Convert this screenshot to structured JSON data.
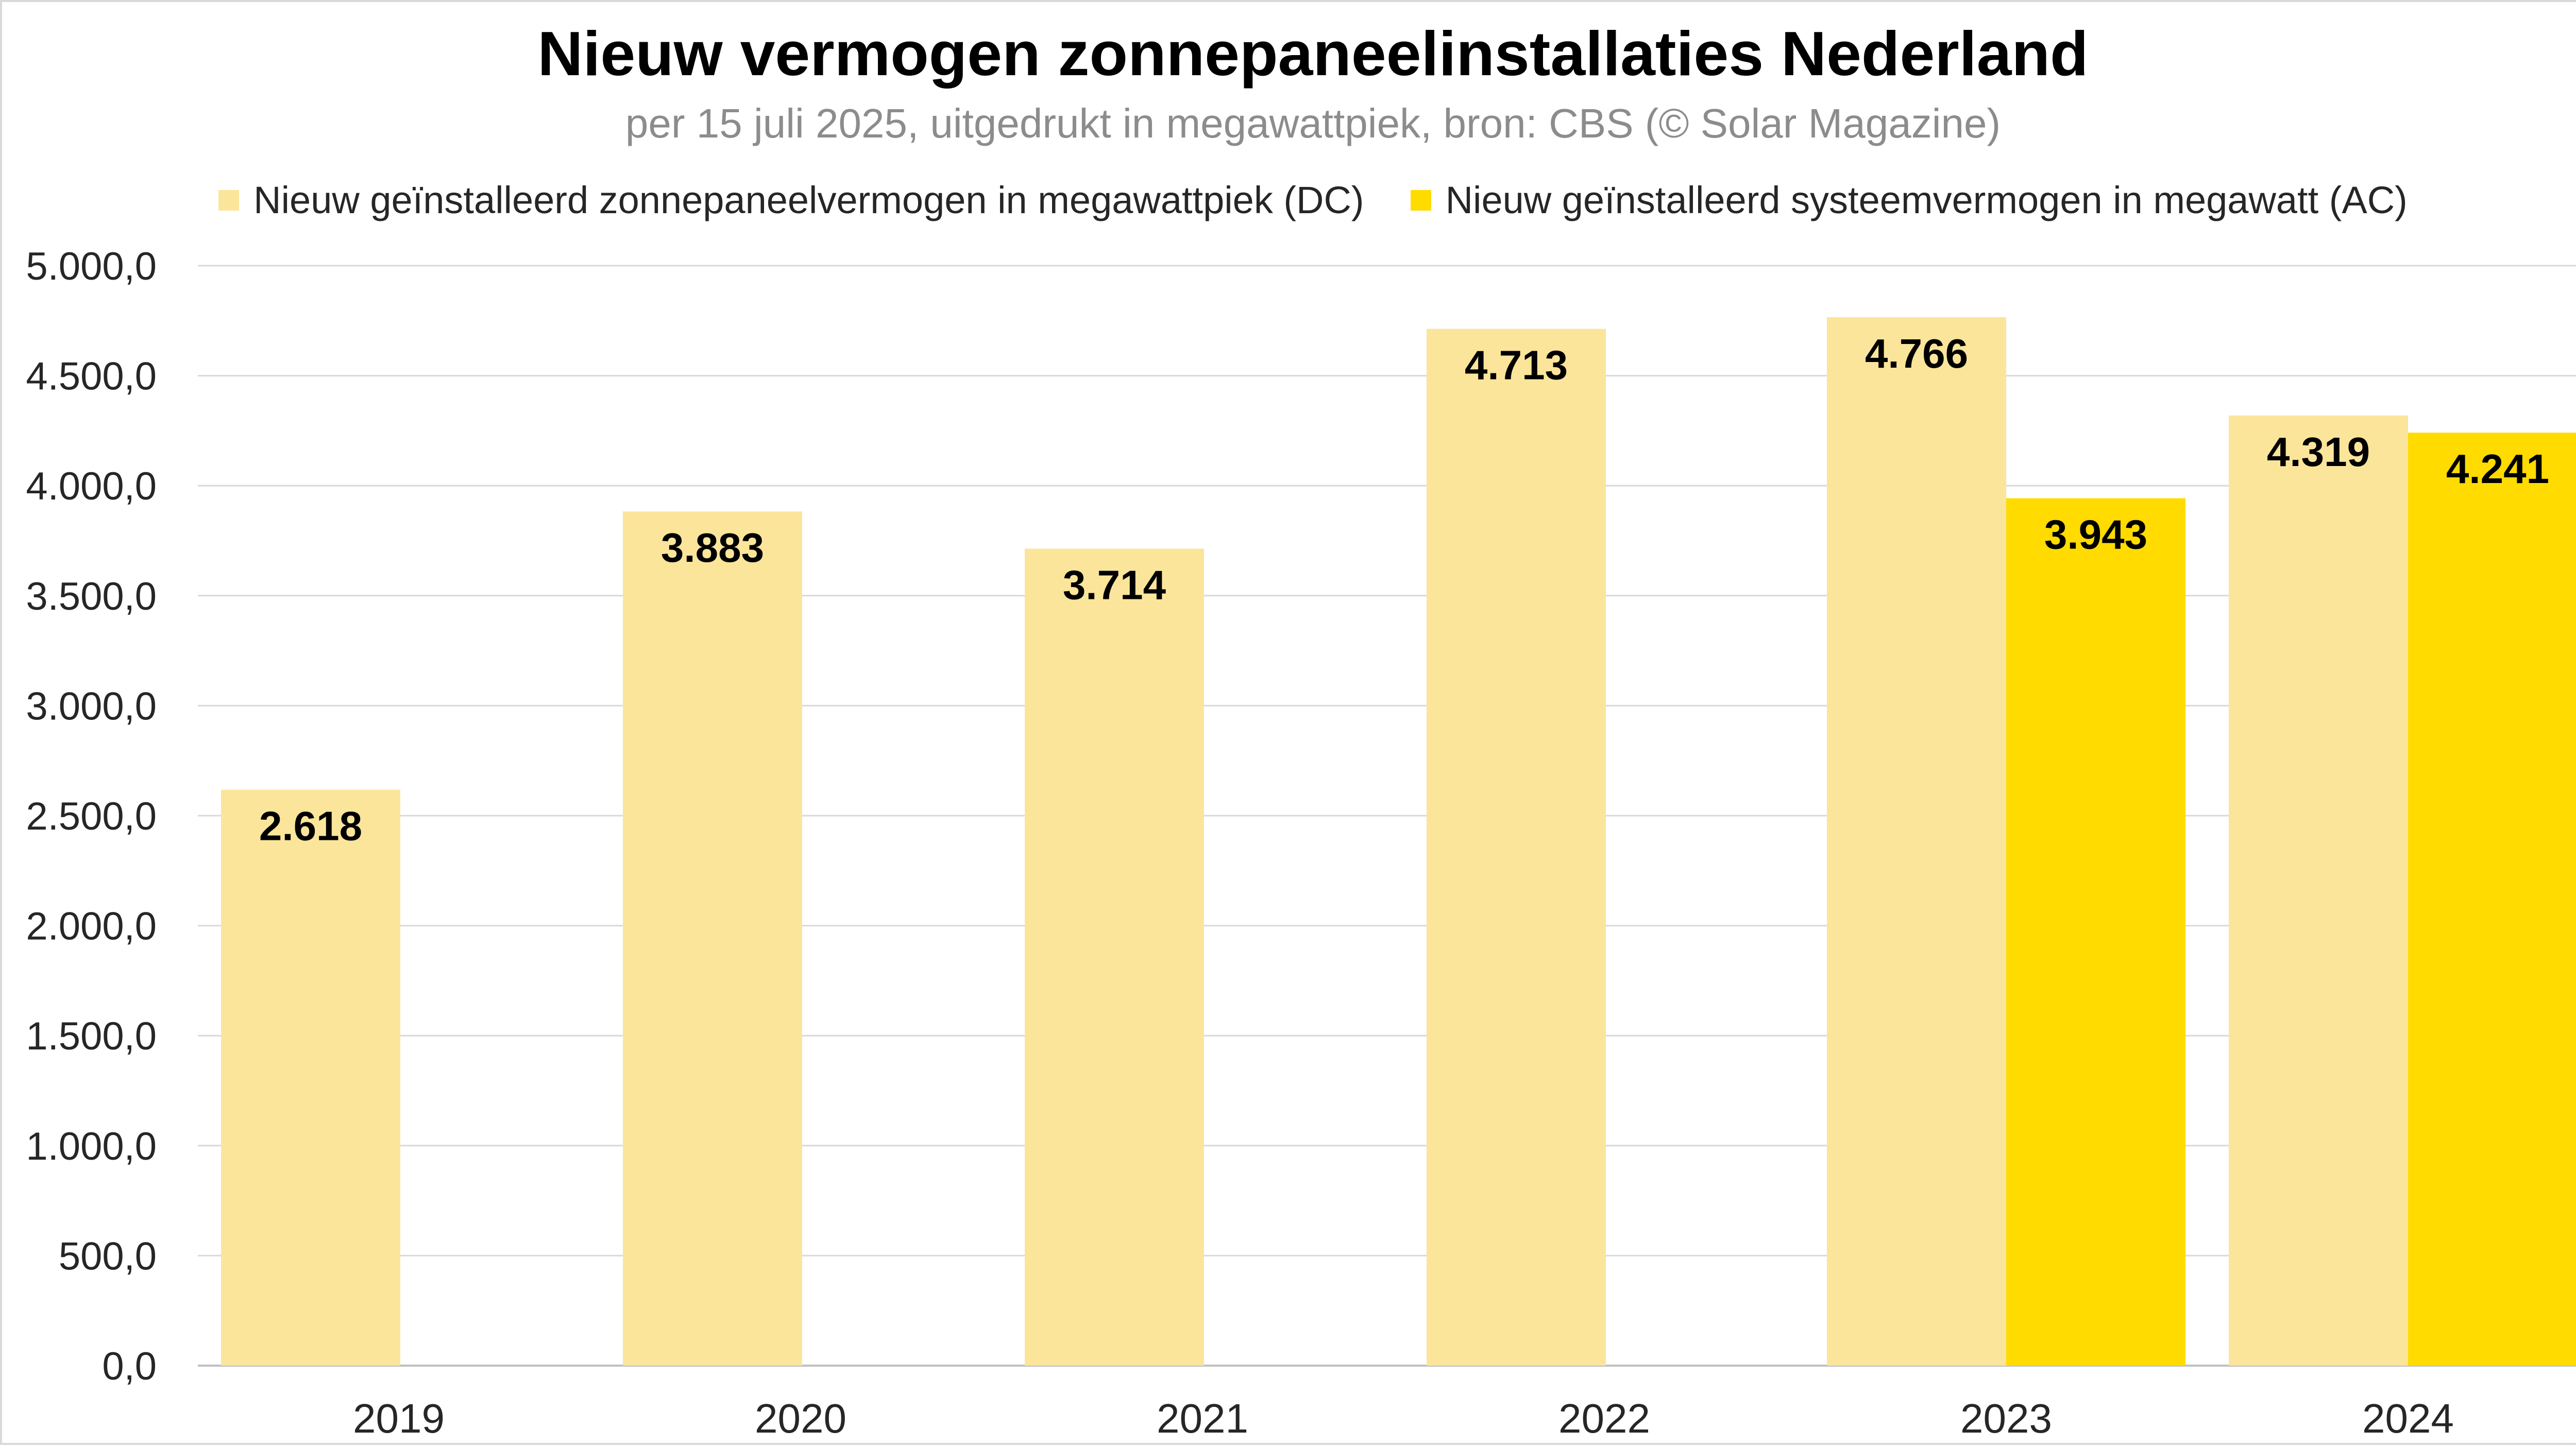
{
  "chart_data": {
    "type": "bar",
    "title": "Nieuw vermogen zonnepaneelinstallaties Nederland",
    "subtitle": "per 15 juli 2025, uitgedrukt in megawattpiek, bron: CBS (© Solar Magazine)",
    "categories": [
      "2019",
      "2020",
      "2021",
      "2022",
      "2023",
      "2024"
    ],
    "series": [
      {
        "name": "Nieuw geïnstalleerd zonnepaneelvermogen in megawattpiek (DC)",
        "color": "#fbe59b",
        "values": [
          2618,
          3883,
          3714,
          4713,
          4766,
          4319
        ],
        "labels": [
          "2.618",
          "3.883",
          "3.714",
          "4.713",
          "4.766",
          "4.319"
        ]
      },
      {
        "name": "Nieuw geïnstalleerd systeemvermogen in megawatt (AC)",
        "color": "#ffdb00",
        "values": [
          null,
          null,
          null,
          null,
          3943,
          4241
        ],
        "labels": [
          null,
          null,
          null,
          null,
          "3.943",
          "4.241"
        ]
      }
    ],
    "yticks": [
      "0,0",
      "500,0",
      "1.000,0",
      "1.500,0",
      "2.000,0",
      "2.500,0",
      "3.000,0",
      "3.500,0",
      "4.000,0",
      "4.500,0",
      "5.000,0"
    ],
    "ylim": [
      0,
      5000
    ],
    "ystep": 500,
    "grid": true,
    "legend_position": "top",
    "xlabel": "",
    "ylabel": ""
  }
}
